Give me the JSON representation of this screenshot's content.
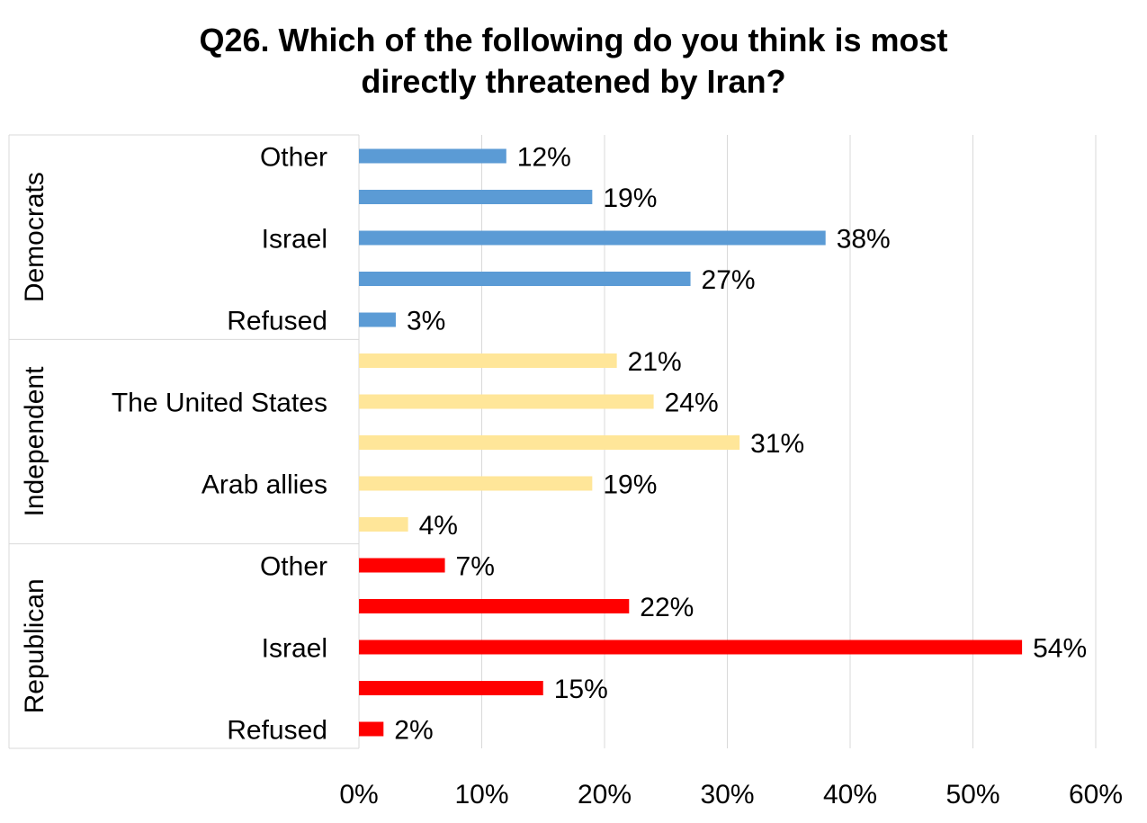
{
  "chart_data": {
    "type": "bar",
    "orientation": "horizontal",
    "title": [
      "Q26. Which of the following do you think is most",
      "directly threatened by Iran?"
    ],
    "xlim": [
      0,
      60
    ],
    "x_ticks": [
      "0%",
      "10%",
      "20%",
      "30%",
      "40%",
      "50%",
      "60%"
    ],
    "grid": "vertical",
    "legend": "none",
    "groups": [
      {
        "name": "Democrats",
        "color": "#5b9bd5",
        "bars": [
          {
            "label": "Other",
            "value": 12,
            "value_label": "12%"
          },
          {
            "label": "",
            "value": 19,
            "value_label": "19%"
          },
          {
            "label": "Israel",
            "value": 38,
            "value_label": "38%"
          },
          {
            "label": "",
            "value": 27,
            "value_label": "27%"
          },
          {
            "label": "Refused",
            "value": 3,
            "value_label": "3%"
          }
        ]
      },
      {
        "name": "Independent",
        "color": "#ffe699",
        "bars": [
          {
            "label": "",
            "value": 21,
            "value_label": "21%"
          },
          {
            "label": "The United States",
            "value": 24,
            "value_label": "24%"
          },
          {
            "label": "",
            "value": 31,
            "value_label": "31%"
          },
          {
            "label": "Arab allies",
            "value": 19,
            "value_label": "19%"
          },
          {
            "label": "",
            "value": 4,
            "value_label": "4%"
          }
        ]
      },
      {
        "name": "Republican",
        "color": "#ff0000",
        "bars": [
          {
            "label": "Other",
            "value": 7,
            "value_label": "7%"
          },
          {
            "label": "",
            "value": 22,
            "value_label": "22%"
          },
          {
            "label": "Israel",
            "value": 54,
            "value_label": "54%"
          },
          {
            "label": "",
            "value": 15,
            "value_label": "15%"
          },
          {
            "label": "Refused",
            "value": 2,
            "value_label": "2%"
          }
        ]
      }
    ]
  }
}
